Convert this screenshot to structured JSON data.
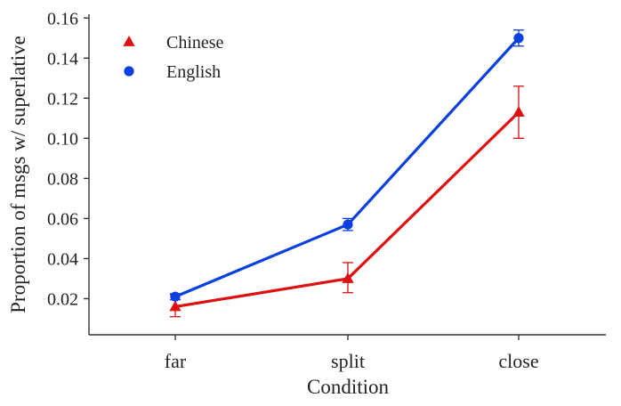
{
  "chart_data": {
    "type": "line",
    "title": "",
    "xlabel": "Condition",
    "ylabel": "Proportion of msgs w/ superlative",
    "categories": [
      "far",
      "split",
      "close"
    ],
    "ylim": [
      0.002,
      0.161
    ],
    "yticks": [
      0.02,
      0.04,
      0.06,
      0.08,
      0.1,
      0.12,
      0.14,
      0.16
    ],
    "ytick_labels": [
      "0.02",
      "0.04",
      "0.06",
      "0.08",
      "0.10",
      "0.12",
      "0.14",
      "0.16"
    ],
    "legend_position": "top-left",
    "grid": false,
    "series": [
      {
        "name": "Chinese",
        "marker": "triangle",
        "color": "#dd1111",
        "values": [
          0.016,
          0.03,
          0.113
        ],
        "error_low": [
          0.011,
          0.023,
          0.1
        ],
        "error_high": [
          0.022,
          0.038,
          0.126
        ]
      },
      {
        "name": "English",
        "marker": "circle",
        "color": "#0a3fe0",
        "values": [
          0.021,
          0.057,
          0.15
        ],
        "error_low": [
          0.0195,
          0.054,
          0.146
        ],
        "error_high": [
          0.0225,
          0.06,
          0.154
        ]
      }
    ]
  }
}
